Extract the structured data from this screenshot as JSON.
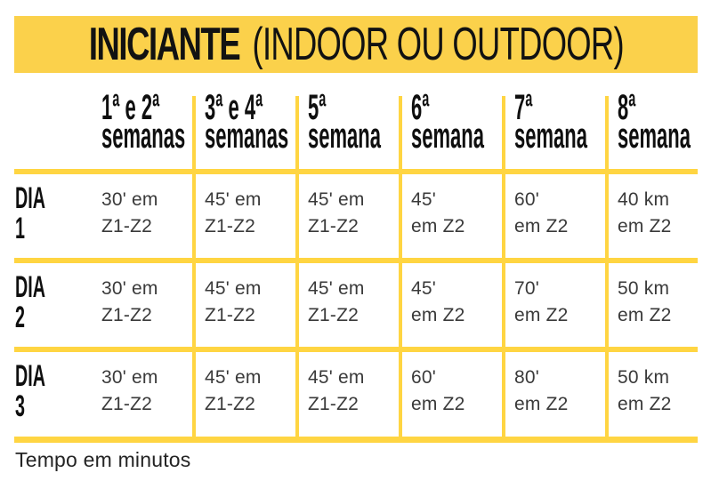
{
  "title": {
    "bold": "INICIANTE",
    "rest": "(INDOOR OU OUTDOOR)"
  },
  "colors": {
    "banner_yellow": "#FBD14B",
    "grid_line_yellow": "#FFD542",
    "heading_text": "#0f0f0f",
    "cell_text": "#3a3a3a",
    "background": "#ffffff"
  },
  "table": {
    "column_headers": [
      "1ª e 2ª\nsemanas",
      "3ª e 4ª\nsemanas",
      "5ª\nsemana",
      "6ª\nsemana",
      "7ª\nsemana",
      "8ª\nsemana"
    ],
    "rows": [
      {
        "label": "DIA 1",
        "cells": [
          "30' em\nZ1-Z2",
          "45' em\nZ1-Z2",
          "45' em\nZ1-Z2",
          "45'\nem Z2",
          "60'\nem Z2",
          "40 km\nem Z2"
        ]
      },
      {
        "label": "DIA 2",
        "cells": [
          "30' em\nZ1-Z2",
          "45' em\nZ1-Z2",
          "45' em\nZ1-Z2",
          "45'\nem Z2",
          "70'\nem Z2",
          "50 km\nem Z2"
        ]
      },
      {
        "label": "DIA 3",
        "cells": [
          "30' em\nZ1-Z2",
          "45' em\nZ1-Z2",
          "45' em\nZ1-Z2",
          "60'\nem Z2",
          "80'\nem Z2",
          "50 km\nem Z2"
        ]
      }
    ]
  },
  "footnote": "Tempo em minutos",
  "chart_data": {
    "type": "table",
    "title": "INICIANTE (INDOOR OU OUTDOOR)",
    "columns": [
      "",
      "1ª e 2ª semanas",
      "3ª e 4ª semanas",
      "5ª semana",
      "6ª semana",
      "7ª semana",
      "8ª semana"
    ],
    "rows": [
      [
        "DIA 1",
        "30' em Z1-Z2",
        "45' em Z1-Z2",
        "45' em Z1-Z2",
        "45' em Z2",
        "60' em Z2",
        "40 km em Z2"
      ],
      [
        "DIA 2",
        "30' em Z1-Z2",
        "45' em Z1-Z2",
        "45' em Z1-Z2",
        "45' em Z2",
        "70' em Z2",
        "50 km em Z2"
      ],
      [
        "DIA 3",
        "30' em Z1-Z2",
        "45' em Z1-Z2",
        "45' em Z1-Z2",
        "60' em Z2",
        "80' em Z2",
        "50 km em Z2"
      ]
    ],
    "footnote": "Tempo em minutos"
  }
}
